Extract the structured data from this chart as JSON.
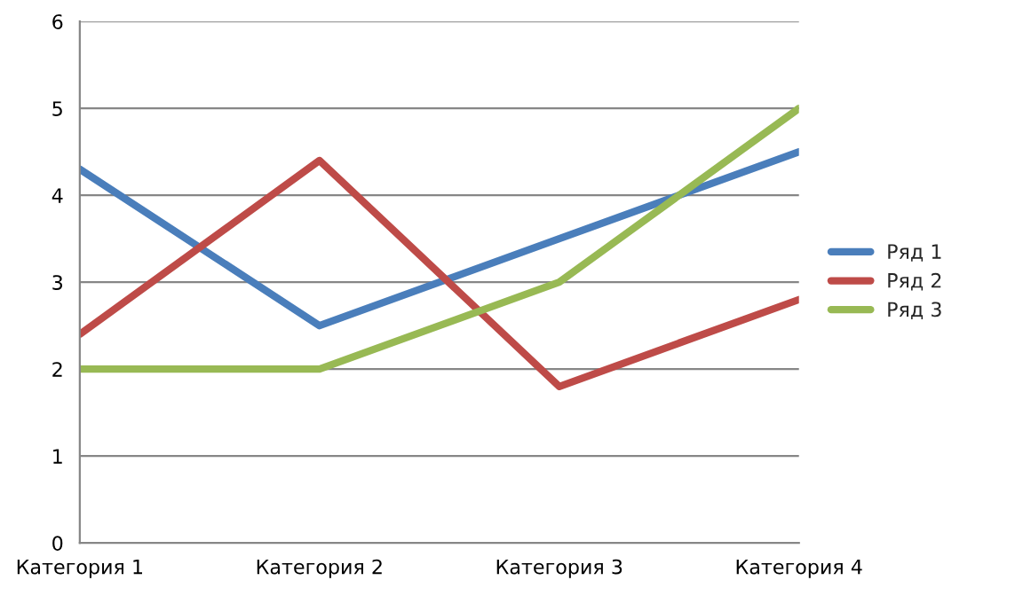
{
  "chart_data": {
    "type": "line",
    "categories": [
      "Категория 1",
      "Категория 2",
      "Категория 3",
      "Категория 4"
    ],
    "series": [
      {
        "name": "Ряд 1",
        "color": "#4a7ebb",
        "values": [
          4.3,
          2.5,
          3.5,
          4.5
        ]
      },
      {
        "name": "Ряд 2",
        "color": "#be4b48",
        "values": [
          2.4,
          4.4,
          1.8,
          2.8
        ]
      },
      {
        "name": "Ряд 3",
        "color": "#98b954",
        "values": [
          2,
          2,
          3,
          5
        ]
      }
    ],
    "ylim": [
      0,
      6
    ],
    "yticks": [
      0,
      1,
      2,
      3,
      4,
      5,
      6
    ],
    "grid": "y",
    "legend": "right",
    "marker": "none",
    "line_style": "solid"
  }
}
